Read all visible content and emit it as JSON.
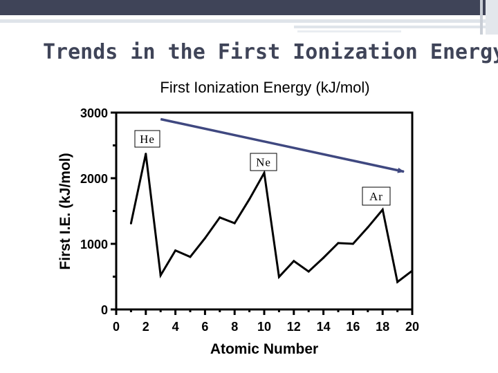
{
  "slide": {
    "title": "Trends in the First Ionization Energy"
  },
  "chart_data": {
    "type": "line",
    "title": "First Ionization Energy (kJ/mol)",
    "xlabel": "Atomic  Number",
    "ylabel": "First I.E. (kJ/mol)",
    "xlim": [
      0,
      20
    ],
    "ylim": [
      0,
      3000
    ],
    "x_ticks": [
      "0",
      "2",
      "4",
      "6",
      "8",
      "10",
      "12",
      "14",
      "16",
      "18",
      "20"
    ],
    "y_ticks": [
      "0",
      "1000",
      "2000",
      "3000"
    ],
    "grid": false,
    "x": [
      1,
      2,
      3,
      4,
      5,
      6,
      7,
      8,
      9,
      10,
      11,
      12,
      13,
      14,
      15,
      16,
      17,
      18,
      19,
      20
    ],
    "y": [
      1312,
      2372,
      520,
      899,
      801,
      1086,
      1402,
      1314,
      1681,
      2081,
      496,
      738,
      578,
      787,
      1012,
      1000,
      1251,
      1521,
      419,
      590
    ],
    "annotations": [
      {
        "text": "He",
        "x": 2
      },
      {
        "text": "Ne",
        "x": 10
      },
      {
        "text": "Ar",
        "x": 18
      }
    ],
    "trend_arrow": {
      "from": [
        3,
        2900
      ],
      "to": [
        20,
        2100
      ],
      "color": "#3f4880"
    },
    "line_color": "#000000"
  }
}
